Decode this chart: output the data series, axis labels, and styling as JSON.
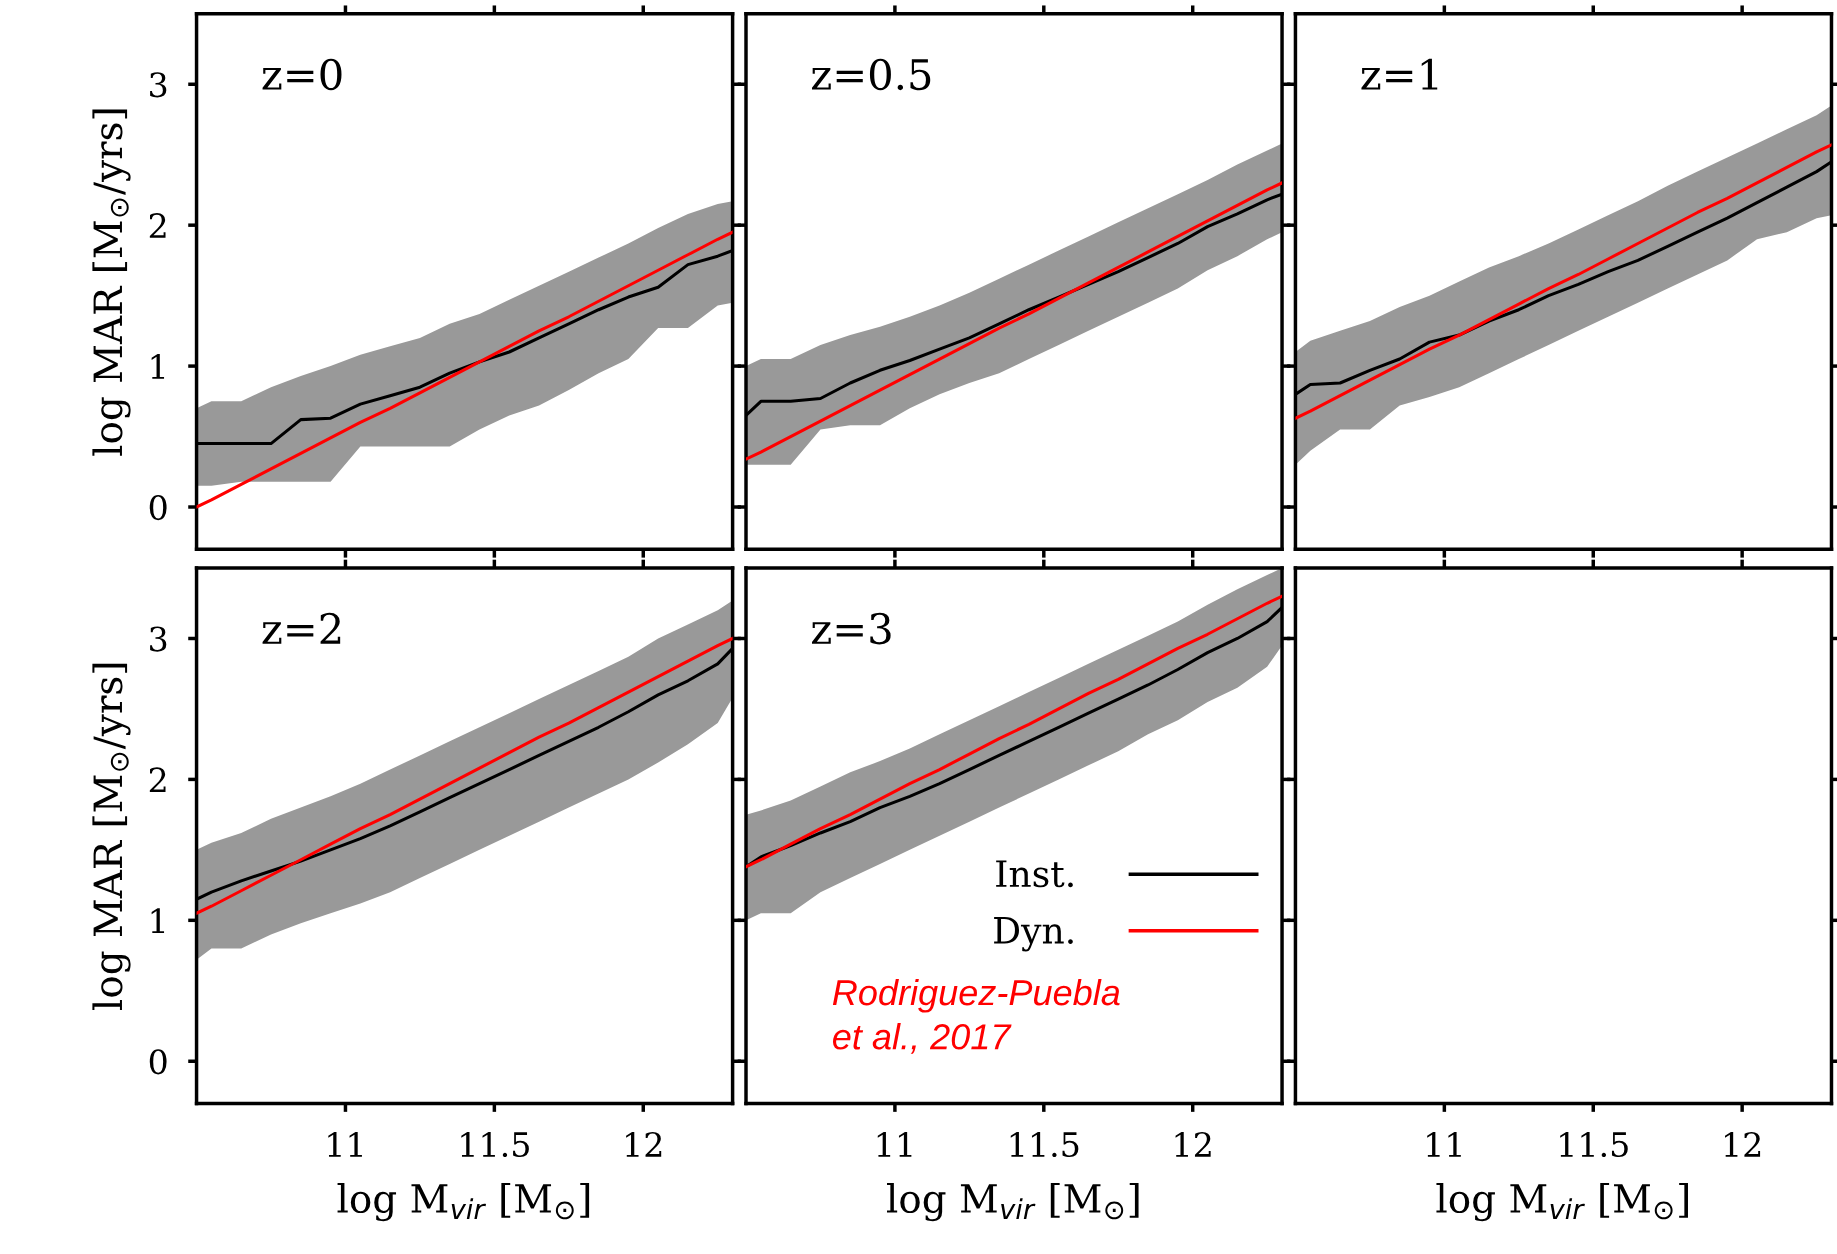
{
  "chart_data": [
    {
      "type": "line",
      "title": "z=0",
      "ylabel": "log MAR [M$_{⊙}$/yrs]",
      "tick_labels": "y",
      "xlim": [
        10.5,
        12.3
      ],
      "ylim": [
        -0.3,
        3.5
      ],
      "xticks": [
        11,
        11.5,
        12
      ],
      "yticks": [
        0,
        1,
        2,
        3
      ],
      "x": [
        10.5,
        10.55,
        10.65,
        10.75,
        10.85,
        10.95,
        11.05,
        11.15,
        11.25,
        11.35,
        11.45,
        11.55,
        11.65,
        11.75,
        11.85,
        11.95,
        12.05,
        12.15,
        12.25,
        12.3
      ],
      "series": [
        {
          "color": "#000000",
          "values": [
            0.45,
            0.45,
            0.45,
            0.45,
            0.62,
            0.63,
            0.73,
            0.79,
            0.85,
            0.95,
            1.03,
            1.1,
            1.2,
            1.3,
            1.4,
            1.49,
            1.56,
            1.72,
            1.78,
            1.82
          ],
          "upper": [
            0.7,
            0.75,
            0.75,
            0.85,
            0.93,
            1.0,
            1.08,
            1.14,
            1.2,
            1.3,
            1.37,
            1.47,
            1.57,
            1.67,
            1.77,
            1.87,
            1.98,
            2.08,
            2.15,
            2.17
          ],
          "lower": [
            0.15,
            0.15,
            0.18,
            0.18,
            0.18,
            0.18,
            0.43,
            0.43,
            0.43,
            0.43,
            0.55,
            0.65,
            0.72,
            0.83,
            0.95,
            1.05,
            1.27,
            1.27,
            1.43,
            1.45
          ]
        },
        {
          "color": "#ff0000",
          "values": [
            0,
            0.05,
            0.16,
            0.27,
            0.38,
            0.49,
            0.6,
            0.7,
            0.81,
            0.92,
            1.03,
            1.14,
            1.25,
            1.35,
            1.46,
            1.57,
            1.68,
            1.79,
            1.9,
            1.95
          ]
        }
      ]
    },
    {
      "type": "line",
      "title": "z=0.5",
      "tick_labels": false,
      "xlim": [
        10.5,
        12.3
      ],
      "ylim": [
        -0.3,
        3.5
      ],
      "xticks": [
        11,
        11.5,
        12
      ],
      "yticks": [
        0,
        1,
        2,
        3
      ],
      "x": [
        10.5,
        10.55,
        10.65,
        10.75,
        10.85,
        10.95,
        11.05,
        11.15,
        11.25,
        11.35,
        11.45,
        11.55,
        11.65,
        11.75,
        11.85,
        11.95,
        12.05,
        12.15,
        12.25,
        12.3
      ],
      "series": [
        {
          "color": "#000000",
          "values": [
            0.65,
            0.75,
            0.75,
            0.77,
            0.88,
            0.97,
            1.04,
            1.12,
            1.2,
            1.3,
            1.4,
            1.49,
            1.58,
            1.67,
            1.77,
            1.87,
            1.99,
            2.08,
            2.18,
            2.22
          ],
          "upper": [
            1.0,
            1.05,
            1.05,
            1.15,
            1.22,
            1.28,
            1.35,
            1.43,
            1.52,
            1.62,
            1.72,
            1.82,
            1.92,
            2.02,
            2.12,
            2.22,
            2.32,
            2.43,
            2.53,
            2.58
          ],
          "lower": [
            0.3,
            0.3,
            0.3,
            0.55,
            0.58,
            0.58,
            0.7,
            0.8,
            0.88,
            0.95,
            1.05,
            1.15,
            1.25,
            1.35,
            1.45,
            1.55,
            1.68,
            1.78,
            1.9,
            1.95
          ]
        },
        {
          "color": "#ff0000",
          "values": [
            0.34,
            0.39,
            0.5,
            0.61,
            0.72,
            0.83,
            0.94,
            1.05,
            1.16,
            1.27,
            1.37,
            1.48,
            1.59,
            1.7,
            1.81,
            1.92,
            2.03,
            2.14,
            2.25,
            2.3
          ]
        }
      ]
    },
    {
      "type": "line",
      "title": "z=1",
      "tick_labels": false,
      "xlim": [
        10.5,
        12.3
      ],
      "ylim": [
        -0.3,
        3.5
      ],
      "xticks": [
        11,
        11.5,
        12
      ],
      "yticks": [
        0,
        1,
        2,
        3
      ],
      "x": [
        10.5,
        10.55,
        10.65,
        10.75,
        10.85,
        10.95,
        11.05,
        11.15,
        11.25,
        11.35,
        11.45,
        11.55,
        11.65,
        11.75,
        11.85,
        11.95,
        12.05,
        12.15,
        12.25,
        12.3
      ],
      "series": [
        {
          "color": "#000000",
          "values": [
            0.8,
            0.87,
            0.88,
            0.97,
            1.05,
            1.17,
            1.22,
            1.32,
            1.4,
            1.5,
            1.58,
            1.67,
            1.75,
            1.85,
            1.95,
            2.05,
            2.16,
            2.27,
            2.38,
            2.45
          ],
          "upper": [
            1.1,
            1.18,
            1.25,
            1.32,
            1.42,
            1.5,
            1.6,
            1.7,
            1.78,
            1.87,
            1.97,
            2.07,
            2.17,
            2.28,
            2.38,
            2.48,
            2.58,
            2.68,
            2.78,
            2.85
          ],
          "lower": [
            0.3,
            0.4,
            0.55,
            0.55,
            0.72,
            0.78,
            0.85,
            0.95,
            1.05,
            1.15,
            1.25,
            1.35,
            1.45,
            1.55,
            1.65,
            1.75,
            1.9,
            1.95,
            2.05,
            2.07
          ]
        },
        {
          "color": "#ff0000",
          "values": [
            0.63,
            0.68,
            0.79,
            0.9,
            1.01,
            1.12,
            1.22,
            1.33,
            1.44,
            1.55,
            1.65,
            1.76,
            1.87,
            1.98,
            2.09,
            2.19,
            2.3,
            2.41,
            2.52,
            2.57
          ]
        }
      ]
    },
    {
      "type": "line",
      "title": "z=2",
      "xlabel": "log M$_{vir}$ [M$_{⊙}$]",
      "ylabel": "log MAR [M$_{⊙}$/yrs]",
      "xlim": [
        10.5,
        12.3
      ],
      "ylim": [
        -0.3,
        3.5
      ],
      "xticks": [
        11,
        11.5,
        12
      ],
      "yticks": [
        0,
        1,
        2,
        3
      ],
      "x": [
        10.5,
        10.55,
        10.65,
        10.75,
        10.85,
        10.95,
        11.05,
        11.15,
        11.25,
        11.35,
        11.45,
        11.55,
        11.65,
        11.75,
        11.85,
        11.95,
        12.05,
        12.15,
        12.25,
        12.3
      ],
      "series": [
        {
          "color": "#000000",
          "values": [
            1.15,
            1.2,
            1.28,
            1.35,
            1.42,
            1.5,
            1.58,
            1.67,
            1.77,
            1.87,
            1.97,
            2.07,
            2.17,
            2.27,
            2.37,
            2.48,
            2.6,
            2.7,
            2.82,
            2.93
          ],
          "upper": [
            1.5,
            1.55,
            1.62,
            1.72,
            1.8,
            1.88,
            1.97,
            2.07,
            2.17,
            2.27,
            2.37,
            2.47,
            2.57,
            2.67,
            2.77,
            2.87,
            3.0,
            3.1,
            3.2,
            3.27
          ],
          "lower": [
            0.72,
            0.8,
            0.8,
            0.9,
            0.98,
            1.05,
            1.12,
            1.2,
            1.3,
            1.4,
            1.5,
            1.6,
            1.7,
            1.8,
            1.9,
            2.0,
            2.12,
            2.25,
            2.4,
            2.58
          ]
        },
        {
          "color": "#ff0000",
          "values": [
            1.05,
            1.1,
            1.21,
            1.32,
            1.43,
            1.54,
            1.65,
            1.75,
            1.86,
            1.97,
            2.08,
            2.19,
            2.3,
            2.4,
            2.51,
            2.62,
            2.73,
            2.84,
            2.95,
            3.0
          ]
        }
      ]
    },
    {
      "type": "line",
      "title": "z=3",
      "xlabel": "log M$_{vir}$ [M$_{⊙}$]",
      "tick_labels": "x",
      "legend": "right",
      "xlim": [
        10.5,
        12.3
      ],
      "ylim": [
        -0.3,
        3.5
      ],
      "xticks": [
        11,
        11.5,
        12
      ],
      "yticks": [
        0,
        1,
        2,
        3
      ],
      "annotations": [
        "Rodriguez-Puebla\net al., 2017"
      ],
      "x": [
        10.5,
        10.55,
        10.65,
        10.75,
        10.85,
        10.95,
        11.05,
        11.15,
        11.25,
        11.35,
        11.45,
        11.55,
        11.65,
        11.75,
        11.85,
        11.95,
        12.05,
        12.15,
        12.25,
        12.3
      ],
      "series": [
        {
          "name": "Inst.",
          "color": "#000000",
          "values": [
            1.38,
            1.45,
            1.53,
            1.62,
            1.7,
            1.8,
            1.88,
            1.97,
            2.07,
            2.17,
            2.27,
            2.37,
            2.47,
            2.57,
            2.67,
            2.78,
            2.9,
            3.0,
            3.12,
            3.22
          ],
          "upper": [
            1.75,
            1.78,
            1.85,
            1.95,
            2.05,
            2.13,
            2.22,
            2.32,
            2.42,
            2.52,
            2.62,
            2.72,
            2.82,
            2.92,
            3.02,
            3.12,
            3.24,
            3.35,
            3.45,
            3.5
          ],
          "lower": [
            1.0,
            1.05,
            1.05,
            1.2,
            1.3,
            1.4,
            1.5,
            1.6,
            1.7,
            1.8,
            1.9,
            2.0,
            2.1,
            2.2,
            2.32,
            2.42,
            2.55,
            2.65,
            2.8,
            2.95
          ]
        },
        {
          "name": "Dyn.",
          "color": "#ff0000",
          "values": [
            1.38,
            1.43,
            1.54,
            1.65,
            1.75,
            1.86,
            1.97,
            2.07,
            2.18,
            2.29,
            2.39,
            2.5,
            2.61,
            2.71,
            2.82,
            2.93,
            3.03,
            3.14,
            3.25,
            3.3
          ]
        }
      ]
    },
    {
      "type": "line",
      "xlabel": "log M$_{vir}$ [M$_{⊙}$]",
      "tick_labels": "x",
      "xlim": [
        10.5,
        12.3
      ],
      "ylim": [
        -0.3,
        3.5
      ],
      "xticks": [
        11,
        11.5,
        12
      ],
      "yticks": [
        0,
        1,
        2,
        3
      ]
    }
  ]
}
